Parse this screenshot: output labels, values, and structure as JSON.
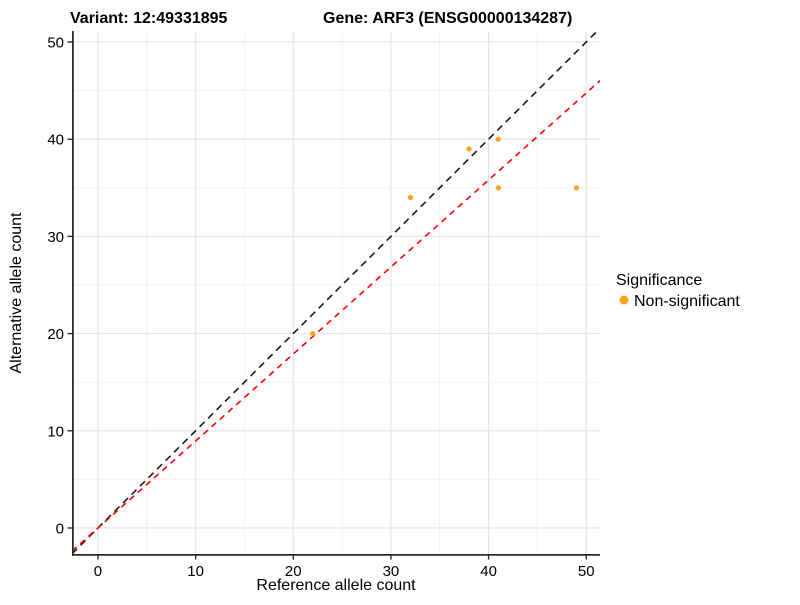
{
  "chart_data": {
    "type": "scatter",
    "title_left": "Variant: 12:49331895",
    "title_right": "Gene: ARF3 (ENSG00000134287)",
    "xlabel": "Reference allele count",
    "ylabel": "Alternative allele count",
    "x_ticks": [
      0,
      10,
      20,
      30,
      40,
      50
    ],
    "y_ticks": [
      0,
      10,
      20,
      30,
      40,
      50
    ],
    "x_minor": [
      5,
      15,
      25,
      35,
      45
    ],
    "y_minor": [
      5,
      15,
      25,
      35,
      45
    ],
    "xlim": [
      -2.66,
      51.41
    ],
    "ylim": [
      -2.78,
      51.13
    ],
    "grid": "major+minor",
    "legend": {
      "title": "Significance",
      "position": "right",
      "items": [
        {
          "label": "Non-significant",
          "color": "#FFA319"
        }
      ]
    },
    "series": [
      {
        "name": "Non-significant",
        "color": "#FFA319",
        "marker": "circle",
        "points": [
          [
            22,
            20
          ],
          [
            32,
            34
          ],
          [
            38,
            39
          ],
          [
            41,
            40
          ],
          [
            41,
            35
          ],
          [
            49,
            35
          ]
        ]
      }
    ],
    "ref_lines": [
      {
        "name": "identity-line",
        "slope": 1.0,
        "intercept": 0,
        "color": "#1A1A1A",
        "dash": "7 5"
      },
      {
        "name": "fit-line",
        "slope": 0.895,
        "intercept": 0,
        "color": "#FF0000",
        "dash": "6 5"
      }
    ],
    "colors": {
      "grid_major": "#E3E3E3",
      "grid_minor": "#F0F0F0",
      "axis": "#2B2B2B",
      "text": "#000000",
      "background": "#FFFFFF"
    }
  }
}
